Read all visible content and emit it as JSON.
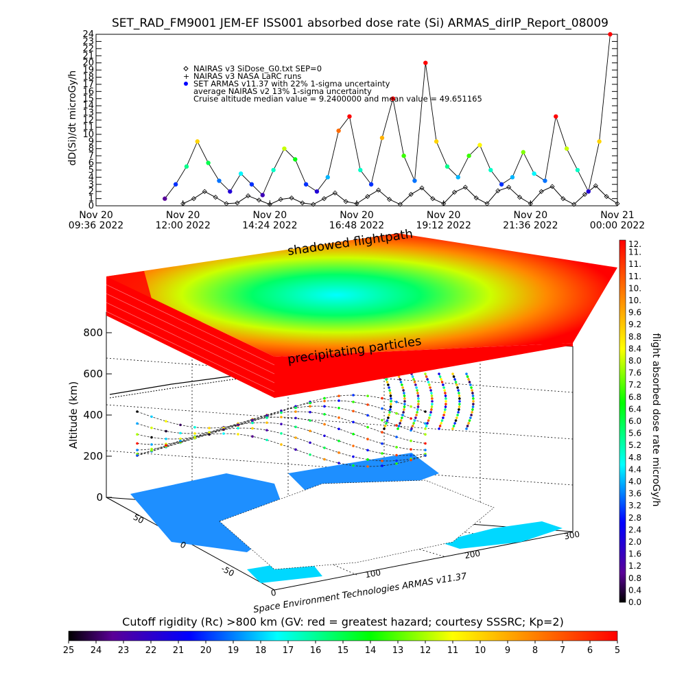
{
  "title": "SET_RAD_FM9001  JEM-EF ISS001 absorbed dose rate (Si) ARMAS_dirIP_Report_08009",
  "chart_data": [
    {
      "type": "scatter",
      "ylabel": "dD(Si)/dt microGy/h",
      "ylim": [
        0,
        24
      ],
      "y_ticks": [
        "0",
        "1",
        "2",
        "3",
        "4",
        "5",
        "6",
        "7",
        "8",
        "9",
        "10",
        "11",
        "12",
        "13",
        "14",
        "15",
        "16",
        "17",
        "18",
        "19",
        "20",
        "21",
        "22",
        "23",
        "24"
      ],
      "x_ticks": [
        {
          "line1": "Nov 20",
          "line2": "09:36 2022"
        },
        {
          "line1": "Nov 20",
          "line2": "12:00 2022"
        },
        {
          "line1": "Nov 20",
          "line2": "14:24 2022"
        },
        {
          "line1": "Nov 20",
          "line2": "16:48 2022"
        },
        {
          "line1": "Nov 20",
          "line2": "19:12 2022"
        },
        {
          "line1": "Nov 20",
          "line2": "21:36 2022"
        },
        {
          "line1": "Nov 21",
          "line2": "00:00 2022"
        }
      ],
      "legend": [
        {
          "marker": "diamond",
          "label": "NAIRAS v3 SiDose_G0.txt SEP=0"
        },
        {
          "marker": "plus",
          "label": "NAIRAS v3 NASA LaRC runs"
        },
        {
          "marker": "dot",
          "label": "SET ARMAS v11.37 with 22% 1-sigma uncertainty"
        },
        {
          "marker": "none",
          "label": "average NAIRAS v2 13% 1-sigma uncertainty"
        },
        {
          "marker": "none",
          "label": "Cruise altitude median value = 9.2400000 and mean value = 49.651165"
        }
      ],
      "legend_position": "top-left",
      "series": [
        {
          "name": "NAIRAS v3 SiDose_G0.txt SEP=0",
          "x_hours": [
            12.0,
            12.3,
            12.6,
            12.9,
            13.2,
            13.5,
            13.8,
            14.1,
            14.4,
            14.7,
            15.0,
            15.3,
            15.6,
            15.9,
            16.2,
            16.5,
            16.8,
            17.1,
            17.4,
            17.7,
            18.0,
            18.3,
            18.6,
            18.9,
            19.2,
            19.5,
            19.8,
            20.1,
            20.4,
            20.7,
            21.0,
            21.3,
            21.6,
            21.9,
            22.2,
            22.5,
            22.8,
            23.1,
            23.4,
            23.7,
            24.0
          ],
          "values": [
            0.3,
            1.0,
            2.0,
            1.2,
            0.3,
            0.4,
            1.4,
            0.8,
            0.2,
            0.9,
            1.1,
            0.4,
            0.2,
            1.0,
            1.8,
            0.6,
            0.3,
            1.3,
            2.2,
            0.9,
            0.2,
            1.6,
            2.5,
            1.0,
            0.3,
            1.9,
            2.6,
            1.1,
            0.3,
            2.1,
            2.6,
            1.2,
            0.3,
            2.0,
            2.7,
            1.0,
            0.2,
            1.6,
            2.8,
            1.3,
            0.3
          ]
        },
        {
          "name": "SET ARMAS v11.37 with 22% 1-sigma uncertainty",
          "x_hours": [
            11.5,
            11.8,
            12.1,
            12.4,
            12.7,
            13.0,
            13.3,
            13.6,
            13.9,
            14.2,
            14.5,
            14.8,
            15.1,
            15.4,
            15.7,
            16.0,
            16.3,
            16.6,
            16.9,
            17.2,
            17.5,
            17.8,
            18.1,
            18.4,
            18.7,
            19.0,
            19.3,
            19.6,
            19.9,
            20.2,
            20.5,
            20.8,
            21.1,
            21.4,
            21.7,
            22.0,
            22.3,
            22.6,
            22.9,
            23.2,
            23.5,
            23.8
          ],
          "values": [
            1.0,
            3.0,
            5.5,
            9.0,
            6.0,
            3.5,
            2.0,
            4.5,
            3.0,
            1.5,
            5.0,
            8.0,
            6.5,
            3.0,
            2.0,
            4.0,
            10.5,
            12.5,
            5.0,
            3.0,
            9.5,
            15.0,
            7.0,
            3.5,
            20.0,
            9.0,
            5.5,
            4.0,
            7.0,
            8.5,
            5.0,
            3.0,
            4.0,
            7.5,
            4.5,
            3.5,
            12.5,
            8.0,
            5.0,
            2.0,
            9.0,
            24.0
          ]
        }
      ]
    },
    {
      "type": "heatmap",
      "subtype": "3d-orbit-dose-map",
      "zlabel": "Altitude (km)",
      "z_ticks": [
        "0",
        "200",
        "400",
        "600",
        "800"
      ],
      "zlim": [
        0,
        900
      ],
      "x_axis_ticks": [
        "0",
        "100",
        "200",
        "300"
      ],
      "y_axis_ticks": [
        "50",
        "0",
        "-50"
      ],
      "annotations": [
        "shadowed flightpath",
        "precipitating particles"
      ],
      "footer_text": "Space Environment Technologies ARMAS v11.37",
      "dose_colorbar": {
        "label": "flight absorbed dose rate microGy/h",
        "ticks": [
          "0.0",
          "0.4",
          "0.8",
          "1.2",
          "1.6",
          "2.0",
          "2.4",
          "2.8",
          "3.2",
          "3.6",
          "4.0",
          "4.4",
          "4.8",
          "5.2",
          "5.6",
          "6.0",
          "6.4",
          "6.8",
          "7.2",
          "7.6",
          "8.0",
          "8.4",
          "8.8",
          "9.2",
          "9.6",
          "10.",
          "10.",
          "11.",
          "11.",
          "11.",
          "12."
        ]
      }
    }
  ],
  "rigidity_bar": {
    "title": "Cutoff rigidity (Rc) >800 km (GV: red = greatest hazard; courtesy SSSRC; Kp=2)",
    "ticks": [
      "25",
      "24",
      "23",
      "22",
      "21",
      "20",
      "19",
      "18",
      "17",
      "16",
      "15",
      "14",
      "13",
      "12",
      "11",
      "10",
      "9",
      "8",
      "7",
      "6",
      "5"
    ]
  },
  "colors": {
    "low": "#000000",
    "purple": "#5a0096",
    "blue": "#0000ff",
    "cyan": "#00ffff",
    "green": "#00ff00",
    "yellow": "#ffff00",
    "orange": "#ff8800",
    "high": "#ff0000",
    "land": "#ffffff",
    "ocean": "#1e8fff"
  }
}
